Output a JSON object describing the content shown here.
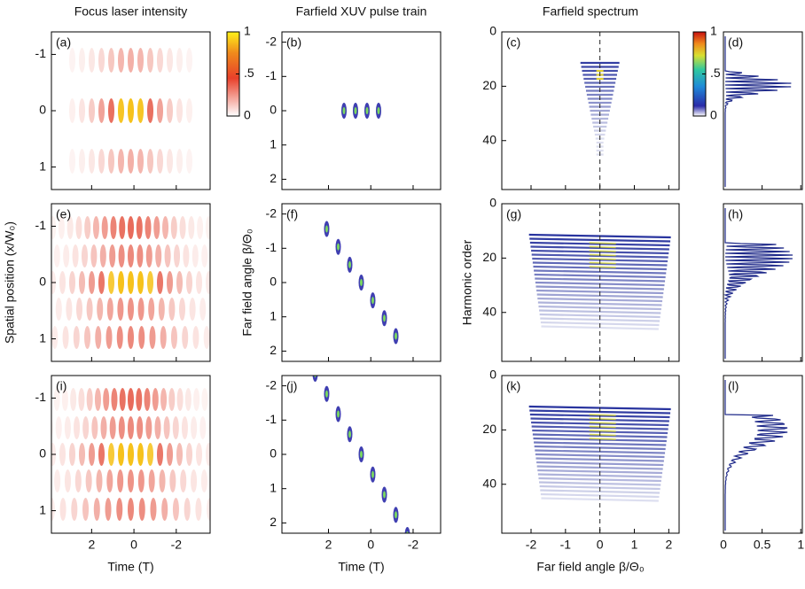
{
  "chart_data": [
    {
      "type": "heatmap",
      "title": "Focus laser intensity",
      "xlabel": "Time (T)",
      "ylabel": "Spatial position (x/W₀)",
      "panels": [
        "(a)",
        "(e)",
        "(i)"
      ],
      "xlim": [
        3.9,
        -3.6
      ],
      "xticks": [
        2,
        0,
        -2
      ],
      "ylim": [
        -1.4,
        1.4
      ],
      "yticks": [
        -1,
        0,
        1
      ],
      "colormap": "hot",
      "colorbar": {
        "lim": [
          0,
          1
        ],
        "ticks": [
          1,
          {
            "value": 0.5,
            "label": ".5"
          },
          0
        ]
      }
    },
    {
      "type": "heatmap",
      "title": "Farfield XUV pulse train",
      "xlabel": "Time (T)",
      "ylabel": "Far field angle β/Θ₀",
      "panels": [
        "(b)",
        "(f)",
        "(j)"
      ],
      "xlim": [
        4.2,
        -3.3
      ],
      "xticks": [
        2,
        0,
        -2
      ],
      "ylim": [
        -2.3,
        2.3
      ],
      "yticks": [
        -2,
        -1,
        0,
        1,
        2
      ],
      "colormap": "jet"
    },
    {
      "type": "heatmap",
      "title": "Farfield spectrum",
      "xlabel": "Far field angle β/Θ₀",
      "ylabel": "Harmonic order",
      "panels": [
        "(c)",
        "(g)",
        "(k)"
      ],
      "xlim": [
        -2.85,
        2.3
      ],
      "xticks": [
        -2,
        -1,
        0,
        1,
        2
      ],
      "ylim": [
        0,
        58
      ],
      "yticks": [
        0,
        20,
        40
      ],
      "colormap": "jet",
      "colorbar": {
        "lim": [
          0,
          1
        ],
        "ticks": [
          1,
          {
            "value": 0.5,
            "label": ".5"
          },
          0
        ]
      }
    },
    {
      "type": "line",
      "panels": [
        "(d)",
        "(h)",
        "(l)"
      ],
      "xlim": [
        0,
        1.02
      ],
      "xticks": [
        0,
        0.5,
        1
      ],
      "ylim": [
        0,
        58
      ],
      "color": "#1f2a8a"
    }
  ]
}
